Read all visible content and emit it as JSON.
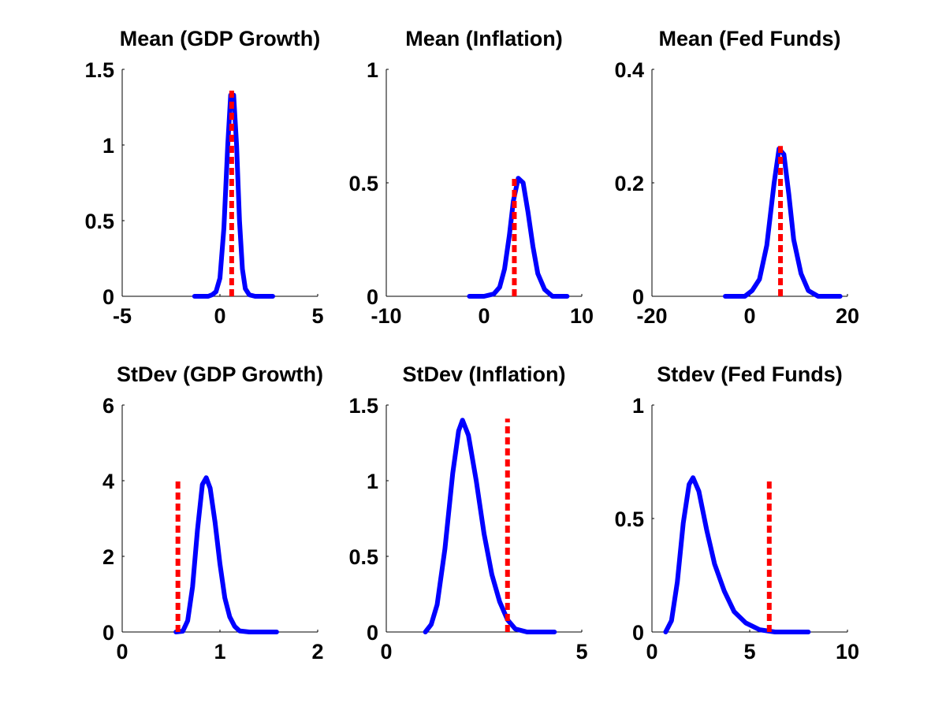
{
  "figure": {
    "background": "#ffffff",
    "density_color": "#0000ff",
    "marker_color": "#ff0000"
  },
  "chart_data": [
    {
      "type": "line",
      "title": "Mean (GDP Growth)",
      "xlim": [
        -5,
        5
      ],
      "ylim": [
        0,
        1.5
      ],
      "xticks": [
        -5,
        0,
        5
      ],
      "xtick_labels": [
        "-5",
        "0",
        "5"
      ],
      "yticks": [
        0,
        0.5,
        1,
        1.5
      ],
      "ytick_labels": [
        "0",
        "0.5",
        "1",
        "1.5"
      ],
      "grid": false,
      "series": [
        {
          "x": [
            -1.3,
            -0.6,
            -0.4,
            -0.2,
            0.0,
            0.2,
            0.4,
            0.55,
            0.7,
            0.85,
            1.0,
            1.15,
            1.3,
            1.5,
            1.8,
            2.7
          ],
          "y": [
            0.0,
            0.0,
            0.01,
            0.03,
            0.12,
            0.45,
            1.0,
            1.33,
            1.33,
            1.0,
            0.5,
            0.18,
            0.05,
            0.01,
            0.0,
            0.0
          ]
        }
      ],
      "marker_line": {
        "x": 0.6,
        "y_top": 1.38
      }
    },
    {
      "type": "line",
      "title": "Mean (Inflation)",
      "xlim": [
        -10,
        10
      ],
      "ylim": [
        0,
        1
      ],
      "xticks": [
        -10,
        0,
        10
      ],
      "xtick_labels": [
        "-10",
        "0",
        "10"
      ],
      "yticks": [
        0,
        0.5,
        1
      ],
      "ytick_labels": [
        "0",
        "0.5",
        "1"
      ],
      "grid": false,
      "series": [
        {
          "x": [
            -1.5,
            0.0,
            1.0,
            1.6,
            2.1,
            2.6,
            3.0,
            3.5,
            4.0,
            4.5,
            5.0,
            5.5,
            6.2,
            7.0,
            8.5
          ],
          "y": [
            0.0,
            0.0,
            0.01,
            0.04,
            0.12,
            0.27,
            0.42,
            0.52,
            0.5,
            0.37,
            0.22,
            0.1,
            0.03,
            0.0,
            0.0
          ]
        }
      ],
      "marker_line": {
        "x": 3.1,
        "y_top": 0.52
      }
    },
    {
      "type": "line",
      "title": "Mean (Fed Funds)",
      "xlim": [
        -20,
        20
      ],
      "ylim": [
        0,
        0.4
      ],
      "xticks": [
        -20,
        0,
        20
      ],
      "xtick_labels": [
        "-20",
        "0",
        "20"
      ],
      "yticks": [
        0,
        0.2,
        0.4
      ],
      "ytick_labels": [
        "0",
        "0.2",
        "0.4"
      ],
      "grid": false,
      "series": [
        {
          "x": [
            -5.0,
            -1.0,
            0.5,
            2.0,
            3.5,
            5.0,
            6.0,
            7.0,
            8.0,
            9.0,
            10.5,
            12.0,
            14.0,
            18.5
          ],
          "y": [
            0.0,
            0.0,
            0.01,
            0.03,
            0.09,
            0.2,
            0.26,
            0.25,
            0.18,
            0.1,
            0.04,
            0.01,
            0.0,
            0.0
          ]
        }
      ],
      "marker_line": {
        "x": 6.3,
        "y_top": 0.265
      }
    },
    {
      "type": "line",
      "title": "StDev (GDP Growth)",
      "xlim": [
        0,
        2
      ],
      "ylim": [
        0,
        6
      ],
      "xticks": [
        0,
        1,
        2
      ],
      "xtick_labels": [
        "0",
        "1",
        "2"
      ],
      "yticks": [
        0,
        2,
        4,
        6
      ],
      "ytick_labels": [
        "0",
        "2",
        "4",
        "6"
      ],
      "grid": false,
      "series": [
        {
          "x": [
            0.55,
            0.62,
            0.67,
            0.72,
            0.77,
            0.82,
            0.86,
            0.9,
            0.95,
            1.0,
            1.05,
            1.1,
            1.15,
            1.2,
            1.3,
            1.58
          ],
          "y": [
            0.0,
            0.02,
            0.3,
            1.2,
            2.7,
            3.9,
            4.08,
            3.8,
            2.9,
            1.8,
            0.9,
            0.4,
            0.15,
            0.03,
            0.0,
            0.0
          ]
        }
      ],
      "marker_line": {
        "x": 0.57,
        "y_top": 4.05
      }
    },
    {
      "type": "line",
      "title": "StDev (Inflation)",
      "xlim": [
        0,
        5
      ],
      "ylim": [
        0,
        1.5
      ],
      "xticks": [
        0,
        5
      ],
      "xtick_labels": [
        "0",
        "5"
      ],
      "yticks": [
        0,
        0.5,
        1,
        1.5
      ],
      "ytick_labels": [
        "0",
        "0.5",
        "1",
        "1.5"
      ],
      "grid": false,
      "series": [
        {
          "x": [
            1.0,
            1.15,
            1.3,
            1.5,
            1.7,
            1.85,
            1.95,
            2.1,
            2.3,
            2.5,
            2.7,
            2.9,
            3.1,
            3.3,
            3.6,
            4.3
          ],
          "y": [
            0.0,
            0.05,
            0.18,
            0.55,
            1.05,
            1.33,
            1.4,
            1.3,
            1.0,
            0.65,
            0.38,
            0.2,
            0.08,
            0.02,
            0.0,
            0.0
          ]
        }
      ],
      "marker_line": {
        "x": 3.1,
        "y_top": 1.41
      }
    },
    {
      "type": "line",
      "title": "Stdev (Fed Funds)",
      "xlim": [
        0,
        10
      ],
      "ylim": [
        0,
        1
      ],
      "xticks": [
        0,
        5,
        10
      ],
      "xtick_labels": [
        "0",
        "5",
        "10"
      ],
      "yticks": [
        0,
        0.5,
        1
      ],
      "ytick_labels": [
        "0",
        "0.5",
        "1"
      ],
      "grid": false,
      "series": [
        {
          "x": [
            0.7,
            1.0,
            1.3,
            1.6,
            1.9,
            2.1,
            2.4,
            2.8,
            3.2,
            3.7,
            4.2,
            4.8,
            5.5,
            6.3,
            8.0
          ],
          "y": [
            0.0,
            0.05,
            0.22,
            0.48,
            0.65,
            0.68,
            0.62,
            0.45,
            0.3,
            0.18,
            0.09,
            0.04,
            0.01,
            0.0,
            0.0
          ]
        }
      ],
      "marker_line": {
        "x": 6.0,
        "y_top": 0.67
      }
    }
  ]
}
